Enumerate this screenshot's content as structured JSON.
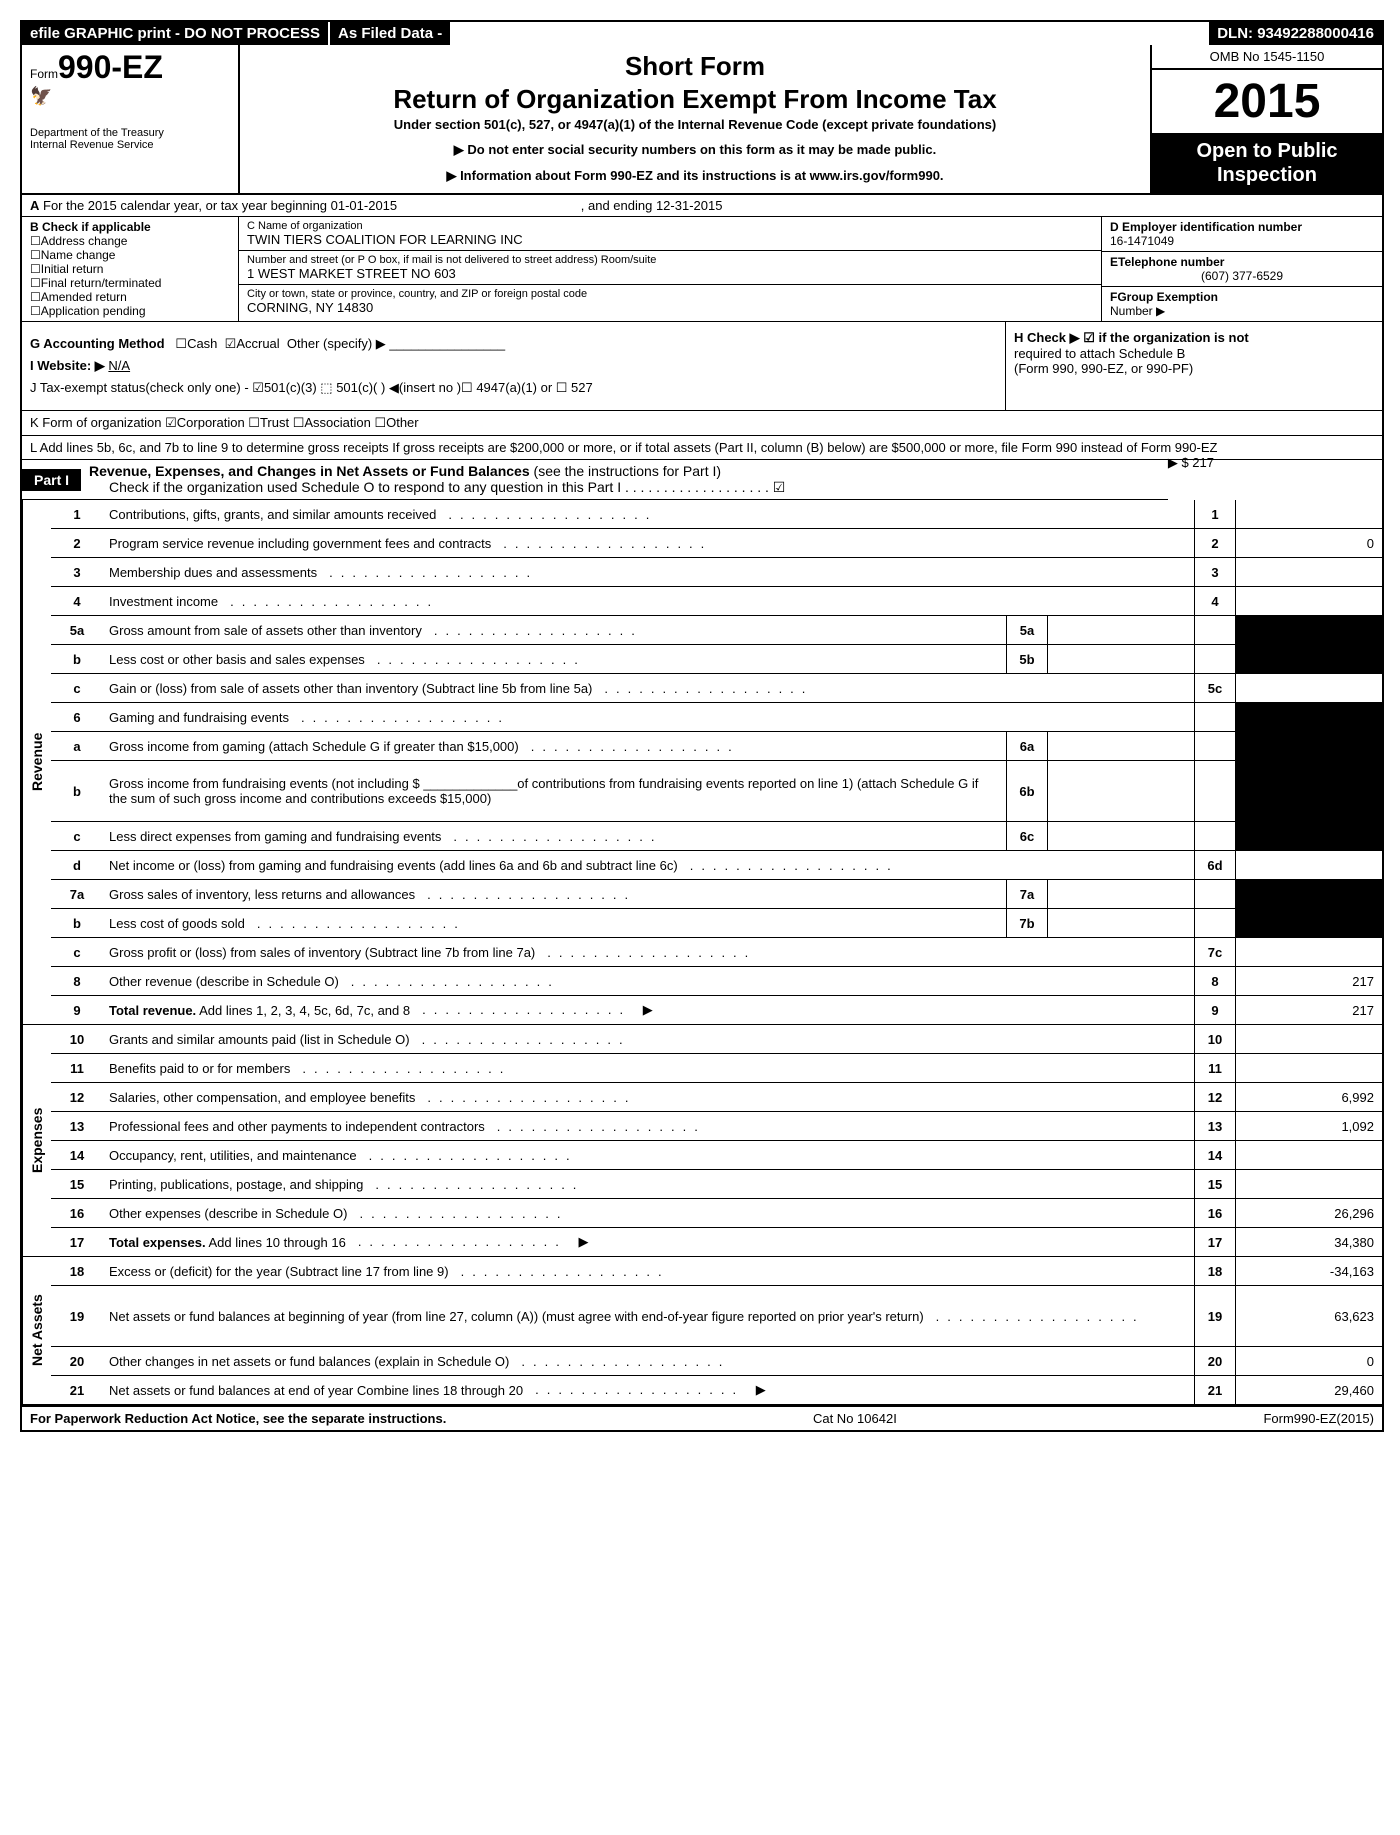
{
  "topbar": {
    "efile": "efile GRAPHIC print - DO NOT PROCESS",
    "asfiled": "As Filed Data -",
    "dln": "DLN: 93492288000416"
  },
  "header": {
    "form_number": "990-EZ",
    "title1": "Short Form",
    "title2": "Return of Organization Exempt From Income Tax",
    "subtitle": "Under section 501(c), 527, or 4947(a)(1) of the Internal Revenue Code (except private foundations)",
    "note1": "▶ Do not enter social security numbers on this form as it may be made public.",
    "note2": "▶ Information about Form 990-EZ and its instructions is at www.irs.gov/form990.",
    "dept1": "Department of the Treasury",
    "dept2": "Internal Revenue Service",
    "omb": "OMB No 1545-1150",
    "year": "2015",
    "open1": "Open to Public",
    "open2": "Inspection"
  },
  "rowA": {
    "prefix": "A",
    "text1": "For the 2015 calendar year, or tax year beginning 01-01-2015",
    "text2": ", and ending 12-31-2015"
  },
  "B": {
    "label": "B Check if applicable",
    "items": [
      "Address change",
      "Name change",
      "Initial return",
      "Final return/terminated",
      "Amended return",
      "Application pending"
    ]
  },
  "C": {
    "name_label": "C Name of organization",
    "name": "TWIN TIERS COALITION FOR LEARNING INC",
    "addr_label": "Number and street (or P O box, if mail is not delivered to street address) Room/suite",
    "addr": "1 WEST MARKET STREET NO 603",
    "city_label": "City or town, state or province, country, and ZIP or foreign postal code",
    "city": "CORNING, NY  14830"
  },
  "D": {
    "label": "D Employer identification number",
    "val": "16-1471049"
  },
  "E": {
    "label": "ETelephone number",
    "val": "(607) 377-6529"
  },
  "F": {
    "label": "FGroup Exemption",
    "label2": "Number   ▶",
    "val": ""
  },
  "G": {
    "label": "G Accounting Method",
    "cash": "Cash",
    "accrual": "Accrual",
    "other": "Other (specify) ▶"
  },
  "H": {
    "text1": "H  Check ▶ ☑ if the organization is not",
    "text2": "required to attach Schedule B",
    "text3": "(Form 990, 990-EZ, or 990-PF)"
  },
  "I": {
    "label": "I Website: ▶",
    "val": "N/A"
  },
  "J": {
    "text": "J Tax-exempt status(check only one) - ☑501(c)(3) ⬚ 501(c)( ) ◀(insert no )☐ 4947(a)(1) or ☐ 527"
  },
  "K": {
    "text": "K Form of organization  ☑Corporation ☐Trust ☐Association ☐Other"
  },
  "L": {
    "text": "L Add lines 5b, 6c, and 7b to line 9 to determine gross receipts If gross receipts are $200,000 or more, or if total assets (Part II, column (B) below) are $500,000 or more, file Form 990 instead of Form 990-EZ",
    "amount": "▶ $ 217"
  },
  "partI": {
    "badge": "Part I",
    "title": "Revenue, Expenses, and Changes in Net Assets or Fund Balances",
    "sub": "(see the instructions for Part I)",
    "check": "Check if the organization used Schedule O to respond to any question in this Part I . . . . . . . . . . . . . . . . . . . ☑"
  },
  "sections": [
    {
      "side": "Revenue",
      "lines": [
        {
          "n": "1",
          "d": "Contributions, gifts, grants, and similar amounts received",
          "en": "1",
          "ev": ""
        },
        {
          "n": "2",
          "d": "Program service revenue including government fees and contracts",
          "en": "2",
          "ev": "0"
        },
        {
          "n": "3",
          "d": "Membership dues and assessments",
          "en": "3",
          "ev": ""
        },
        {
          "n": "4",
          "d": "Investment income",
          "en": "4",
          "ev": ""
        },
        {
          "n": "5a",
          "d": "Gross amount from sale of assets other than inventory",
          "sn": "5a",
          "sv": "",
          "shadeEnd": true
        },
        {
          "n": "b",
          "d": "Less  cost or other basis and sales expenses",
          "sn": "5b",
          "sv": "",
          "shadeEnd": true
        },
        {
          "n": "c",
          "d": "Gain or (loss) from sale of assets other than inventory (Subtract line 5b from line 5a)",
          "en": "5c",
          "ev": ""
        },
        {
          "n": "6",
          "d": "Gaming and fundraising events",
          "shadeEnd": true,
          "noEndNum": true
        },
        {
          "n": "a",
          "d": "Gross income from gaming (attach Schedule G if greater than $15,000)",
          "sn": "6a",
          "sv": "",
          "shadeEnd": true
        },
        {
          "n": "b",
          "d": "Gross income from fundraising events (not including $ _____________of contributions from fundraising events reported on line 1) (attach Schedule G if the sum of such gross income and contributions exceeds $15,000)",
          "sn": "6b",
          "sv": "",
          "shadeEnd": true,
          "tall": true
        },
        {
          "n": "c",
          "d": "Less  direct expenses from gaming and fundraising events",
          "sn": "6c",
          "sv": "",
          "shadeEnd": true
        },
        {
          "n": "d",
          "d": "Net income or (loss) from gaming and fundraising events (add lines 6a and 6b and subtract line 6c)",
          "en": "6d",
          "ev": ""
        },
        {
          "n": "7a",
          "d": "Gross sales of inventory, less returns and allowances",
          "sn": "7a",
          "sv": "",
          "shadeEnd": true
        },
        {
          "n": "b",
          "d": "Less  cost of goods sold",
          "sn": "7b",
          "sv": "",
          "shadeEnd": true
        },
        {
          "n": "c",
          "d": "Gross profit or (loss) from sales of inventory (Subtract line 7b from line 7a)",
          "en": "7c",
          "ev": ""
        },
        {
          "n": "8",
          "d": "Other revenue (describe in Schedule O)",
          "en": "8",
          "ev": "217"
        },
        {
          "n": "9",
          "d": "Total revenue. Add lines 1, 2, 3, 4, 5c, 6d, 7c, and 8",
          "en": "9",
          "ev": "217",
          "bold": true,
          "arrow": true
        }
      ]
    },
    {
      "side": "Expenses",
      "lines": [
        {
          "n": "10",
          "d": "Grants and similar amounts paid (list in Schedule O)",
          "en": "10",
          "ev": ""
        },
        {
          "n": "11",
          "d": "Benefits paid to or for members",
          "en": "11",
          "ev": ""
        },
        {
          "n": "12",
          "d": "Salaries, other compensation, and employee benefits",
          "en": "12",
          "ev": "6,992"
        },
        {
          "n": "13",
          "d": "Professional fees and other payments to independent contractors",
          "en": "13",
          "ev": "1,092"
        },
        {
          "n": "14",
          "d": "Occupancy, rent, utilities, and maintenance",
          "en": "14",
          "ev": ""
        },
        {
          "n": "15",
          "d": "Printing, publications, postage, and shipping",
          "en": "15",
          "ev": ""
        },
        {
          "n": "16",
          "d": "Other expenses (describe in Schedule O)",
          "en": "16",
          "ev": "26,296"
        },
        {
          "n": "17",
          "d": "Total expenses. Add lines 10 through 16",
          "en": "17",
          "ev": "34,380",
          "bold": true,
          "arrow": true
        }
      ]
    },
    {
      "side": "Net Assets",
      "lines": [
        {
          "n": "18",
          "d": "Excess or (deficit) for the year (Subtract line 17 from line 9)",
          "en": "18",
          "ev": "-34,163"
        },
        {
          "n": "19",
          "d": "Net assets or fund balances at beginning of year (from line 27, column (A)) (must agree with end-of-year figure reported on prior year's return)",
          "en": "19",
          "ev": "63,623",
          "tall": true,
          "shadeEndTop": true
        },
        {
          "n": "20",
          "d": "Other changes in net assets or fund balances (explain in Schedule O)",
          "en": "20",
          "ev": "0"
        },
        {
          "n": "21",
          "d": "Net assets or fund balances at end of year Combine lines 18 through 20",
          "en": "21",
          "ev": "29,460",
          "arrow": true
        }
      ]
    }
  ],
  "footer": {
    "left": "For Paperwork Reduction Act Notice, see the separate instructions.",
    "mid": "Cat No 10642I",
    "right": "Form990-EZ(2015)"
  }
}
